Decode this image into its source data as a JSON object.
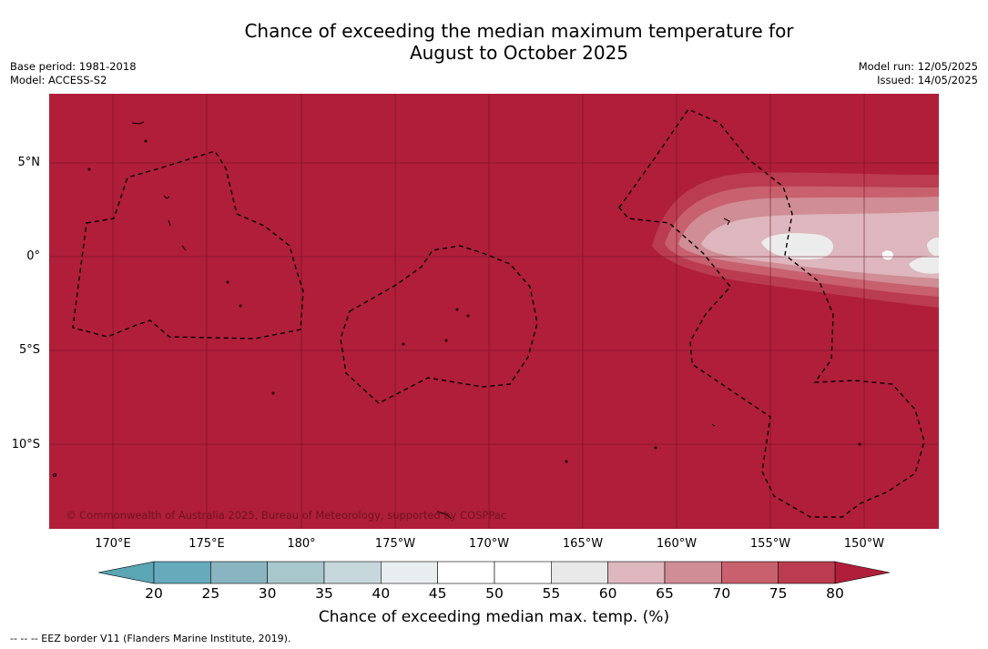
{
  "title": {
    "line1": "Chance of exceeding the median maximum temperature for",
    "line2": "August to October 2025"
  },
  "meta": {
    "base_period": "Base period: 1981-2018",
    "model": "Model: ACCESS-S2",
    "model_run": "Model run: 12/05/2025",
    "issued": "Issued: 14/05/2025"
  },
  "map": {
    "background_color": "#b01e3a",
    "latitude_labels": [
      "5°N",
      "0°",
      "5°S",
      "10°S"
    ],
    "longitude_labels": [
      "170°E",
      "175°E",
      "180°",
      "175°W",
      "170°W",
      "165°W",
      "160°W",
      "155°W",
      "150°W"
    ],
    "copyright": "© Commonwealth of Australia 2025, Bureau of Meteorology, supported by COSPPac"
  },
  "colorbar": {
    "ticks": [
      "20",
      "25",
      "30",
      "35",
      "40",
      "45",
      "50",
      "55",
      "60",
      "65",
      "70",
      "75",
      "80"
    ],
    "colors": [
      "#66aabb",
      "#88b5c1",
      "#a8c7cd",
      "#c7d8dc",
      "#e8eef0",
      "#ffffff",
      "#ffffff",
      "#e9e9ea",
      "#deb6bd",
      "#d08d96",
      "#c8606e",
      "#bb3c50"
    ],
    "low_color": "#5aa6b4",
    "high_color": "#b01e3a",
    "label": "Chance of exceeding median max. temp. (%)"
  },
  "footnote": "-- -- -- EEZ border V11 (Flanders Marine Institute, 2019)."
}
